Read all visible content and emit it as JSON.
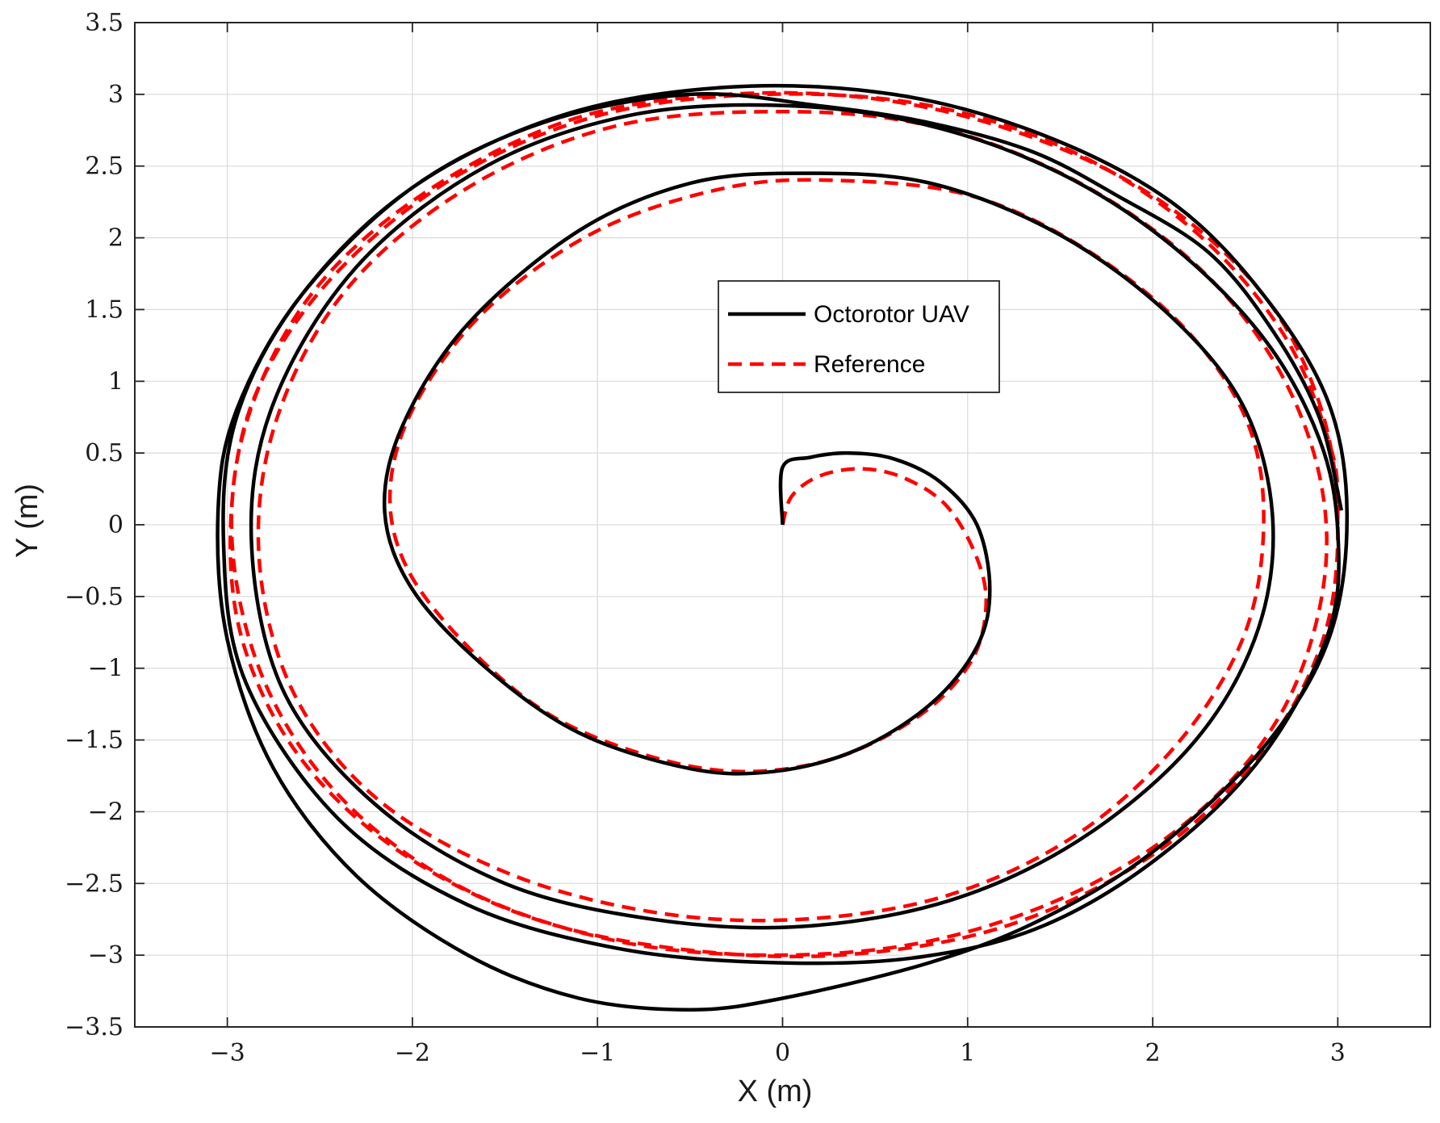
{
  "chart_data": {
    "type": "line",
    "xlabel": "X (m)",
    "ylabel": "Y (m)",
    "xlim": [
      -3.5,
      3.5
    ],
    "ylim": [
      -3.5,
      3.5
    ],
    "xticks": [
      -3,
      -2,
      -1,
      0,
      1,
      2,
      3
    ],
    "xtick_labels": [
      "−3",
      "−2",
      "−1",
      "0",
      "1",
      "2",
      "3"
    ],
    "yticks": [
      3.5,
      3,
      2.5,
      2,
      1.5,
      1,
      0.5,
      0,
      -0.5,
      -1,
      -1.5,
      -2,
      -2.5,
      -3,
      -3.5
    ],
    "ytick_labels": [
      "3.5",
      "3",
      "2.5",
      "2",
      "1.5",
      "1",
      "0.5",
      "0",
      "−0.5",
      "−1",
      "−1.5",
      "−2",
      "−2.5",
      "−3",
      "−3.5"
    ],
    "grid": true,
    "legend_position": "top-center",
    "series": [
      {
        "name": "Octorotor UAV",
        "color": "#000000",
        "dash": "solid",
        "points": [
          [
            0,
            0
          ],
          [
            0,
            0.4
          ],
          [
            0.15,
            0.47
          ],
          [
            0.35,
            0.5
          ],
          [
            0.6,
            0.46
          ],
          [
            0.85,
            0.3
          ],
          [
            1.05,
            0.0
          ],
          [
            1.12,
            -0.45
          ],
          [
            1.05,
            -0.85
          ],
          [
            0.8,
            -1.25
          ],
          [
            0.4,
            -1.57
          ],
          [
            -0.05,
            -1.72
          ],
          [
            -0.5,
            -1.7
          ],
          [
            -1.1,
            -1.45
          ],
          [
            -1.6,
            -1.0
          ],
          [
            -2.0,
            -0.45
          ],
          [
            -2.15,
            0.1
          ],
          [
            -2.05,
            0.7
          ],
          [
            -1.7,
            1.4
          ],
          [
            -1.1,
            2.05
          ],
          [
            -0.5,
            2.38
          ],
          [
            0.1,
            2.45
          ],
          [
            0.8,
            2.38
          ],
          [
            1.5,
            2.02
          ],
          [
            2.1,
            1.45
          ],
          [
            2.5,
            0.8
          ],
          [
            2.65,
            0.0
          ],
          [
            2.55,
            -0.8
          ],
          [
            2.2,
            -1.55
          ],
          [
            1.6,
            -2.2
          ],
          [
            0.9,
            -2.62
          ],
          [
            0.1,
            -2.8
          ],
          [
            -0.7,
            -2.75
          ],
          [
            -1.5,
            -2.5
          ],
          [
            -2.2,
            -1.95
          ],
          [
            -2.7,
            -1.15
          ],
          [
            -2.87,
            -0.1
          ],
          [
            -2.75,
            0.85
          ],
          [
            -2.3,
            1.8
          ],
          [
            -1.6,
            2.5
          ],
          [
            -0.8,
            2.86
          ],
          [
            0.05,
            2.92
          ],
          [
            0.8,
            2.78
          ],
          [
            1.5,
            2.45
          ],
          [
            2.1,
            1.95
          ],
          [
            2.6,
            1.3
          ],
          [
            2.9,
            0.6
          ],
          [
            3.0,
            -0.05
          ],
          [
            2.95,
            -0.75
          ],
          [
            2.6,
            -1.6
          ],
          [
            2.05,
            -2.3
          ],
          [
            1.4,
            -2.8
          ],
          [
            0.7,
            -3.02
          ],
          [
            -0.1,
            -3.05
          ],
          [
            -0.9,
            -2.95
          ],
          [
            -1.7,
            -2.65
          ],
          [
            -2.4,
            -2.05
          ],
          [
            -2.9,
            -1.1
          ],
          [
            -3.02,
            -0.15
          ],
          [
            -2.95,
            0.75
          ],
          [
            -2.6,
            1.6
          ],
          [
            -2.0,
            2.35
          ],
          [
            -1.2,
            2.85
          ],
          [
            -0.3,
            3.05
          ],
          [
            0.6,
            3.0
          ],
          [
            1.4,
            2.72
          ],
          [
            2.1,
            2.25
          ],
          [
            2.6,
            1.6
          ],
          [
            2.95,
            0.85
          ],
          [
            3.05,
            0.05
          ],
          [
            2.95,
            -0.8
          ],
          [
            2.6,
            -1.55
          ],
          [
            2.0,
            -2.28
          ],
          [
            1.4,
            -2.75
          ],
          [
            0.8,
            -3.05
          ],
          [
            0.0,
            -3.3
          ],
          [
            -0.5,
            -3.38
          ],
          [
            -1.1,
            -3.3
          ],
          [
            -1.7,
            -3.0
          ],
          [
            -2.3,
            -2.45
          ],
          [
            -2.75,
            -1.7
          ],
          [
            -3.0,
            -0.8
          ],
          [
            -3.05,
            0.1
          ],
          [
            -2.95,
            0.8
          ],
          [
            -2.6,
            1.6
          ],
          [
            -2.0,
            2.35
          ],
          [
            -1.3,
            2.8
          ],
          [
            -0.5,
            3.0
          ],
          [
            0.2,
            2.92
          ],
          [
            0.8,
            2.8
          ],
          [
            1.35,
            2.6
          ],
          [
            1.8,
            2.3
          ],
          [
            2.3,
            1.9
          ],
          [
            2.65,
            1.35
          ],
          [
            2.9,
            0.75
          ],
          [
            3.02,
            0.1
          ]
        ]
      },
      {
        "name": "Reference",
        "color": "#ff0000",
        "dash": "dashed",
        "points": [
          [
            0,
            0
          ],
          [
            0.05,
            0.2
          ],
          [
            0.2,
            0.34
          ],
          [
            0.42,
            0.39
          ],
          [
            0.65,
            0.33
          ],
          [
            0.88,
            0.14
          ],
          [
            1.04,
            -0.2
          ],
          [
            1.1,
            -0.55
          ],
          [
            1.02,
            -0.95
          ],
          [
            0.75,
            -1.32
          ],
          [
            0.3,
            -1.62
          ],
          [
            -0.2,
            -1.72
          ],
          [
            -0.7,
            -1.62
          ],
          [
            -1.25,
            -1.33
          ],
          [
            -1.7,
            -0.85
          ],
          [
            -2.03,
            -0.3
          ],
          [
            -2.12,
            0.25
          ],
          [
            -1.98,
            0.85
          ],
          [
            -1.6,
            1.5
          ],
          [
            -1.0,
            2.05
          ],
          [
            -0.3,
            2.35
          ],
          [
            0.3,
            2.4
          ],
          [
            1.0,
            2.3
          ],
          [
            1.6,
            1.95
          ],
          [
            2.15,
            1.4
          ],
          [
            2.5,
            0.75
          ],
          [
            2.6,
            0.05
          ],
          [
            2.5,
            -0.75
          ],
          [
            2.15,
            -1.5
          ],
          [
            1.6,
            -2.15
          ],
          [
            0.9,
            -2.58
          ],
          [
            0.1,
            -2.75
          ],
          [
            -0.7,
            -2.7
          ],
          [
            -1.5,
            -2.42
          ],
          [
            -2.2,
            -1.9
          ],
          [
            -2.65,
            -1.15
          ],
          [
            -2.83,
            -0.2
          ],
          [
            -2.73,
            0.75
          ],
          [
            -2.35,
            1.65
          ],
          [
            -1.7,
            2.35
          ],
          [
            -0.9,
            2.78
          ],
          [
            0.0,
            2.88
          ],
          [
            0.8,
            2.78
          ],
          [
            1.55,
            2.42
          ],
          [
            2.2,
            1.85
          ],
          [
            2.65,
            1.15
          ],
          [
            2.9,
            0.35
          ],
          [
            2.92,
            -0.45
          ],
          [
            2.7,
            -1.3
          ],
          [
            2.25,
            -2.0
          ],
          [
            1.6,
            -2.55
          ],
          [
            0.8,
            -2.9
          ],
          [
            -0.05,
            -3.0
          ],
          [
            -0.9,
            -2.9
          ],
          [
            -1.7,
            -2.55
          ],
          [
            -2.35,
            -1.95
          ],
          [
            -2.78,
            -1.15
          ],
          [
            -2.97,
            -0.2
          ],
          [
            -2.9,
            0.7
          ],
          [
            -2.55,
            1.6
          ],
          [
            -1.95,
            2.3
          ],
          [
            -1.15,
            2.82
          ],
          [
            -0.3,
            3.0
          ],
          [
            0.55,
            2.96
          ],
          [
            1.35,
            2.7
          ],
          [
            2.05,
            2.25
          ],
          [
            2.6,
            1.6
          ],
          [
            2.9,
            0.85
          ],
          [
            3.0,
            0.05
          ],
          [
            2.92,
            -0.8
          ],
          [
            2.58,
            -1.6
          ],
          [
            2.0,
            -2.3
          ],
          [
            1.2,
            -2.8
          ],
          [
            0.3,
            -3.0
          ],
          [
            -0.6,
            -2.95
          ],
          [
            -1.4,
            -2.72
          ],
          [
            -2.1,
            -2.25
          ],
          [
            -2.62,
            -1.6
          ],
          [
            -2.92,
            -0.8
          ],
          [
            -2.98,
            0.05
          ],
          [
            -2.85,
            0.9
          ],
          [
            -2.45,
            1.7
          ],
          [
            -1.8,
            2.4
          ],
          [
            -1.0,
            2.85
          ],
          [
            -0.1,
            3.0
          ],
          [
            0.8,
            2.92
          ],
          [
            1.6,
            2.58
          ],
          [
            2.25,
            2.02
          ],
          [
            2.72,
            1.3
          ],
          [
            2.97,
            0.5
          ],
          [
            3.0,
            0.0
          ]
        ]
      }
    ]
  }
}
